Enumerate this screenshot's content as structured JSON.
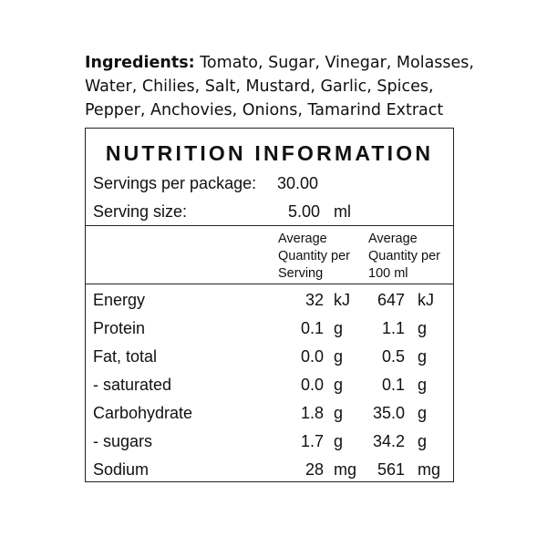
{
  "ingredients": {
    "label": "Ingredients:",
    "text": "Tomato, Sugar, Vinegar, Molasses, Water, Chilies, Salt, Mustard, Garlic, Spices, Pepper, Anchovies, Onions, Tamarind Extract"
  },
  "panel": {
    "title": "NUTRITION INFORMATION",
    "servings_label": "Servings per package:",
    "servings_value": "30.00",
    "serving_size_label": "Serving size:",
    "serving_size_value": "5.00",
    "serving_size_unit": "ml",
    "col_per_serving": "Average Quantity per Serving",
    "col_per_100": "Average Quantity per 100 ml",
    "rows": [
      {
        "name": "Energy",
        "ps": "32",
        "ps_unit": "kJ",
        "p100": "647",
        "p100_unit": "kJ"
      },
      {
        "name": "Protein",
        "ps": "0.1",
        "ps_unit": "g",
        "p100": "1.1",
        "p100_unit": "g"
      },
      {
        "name": "Fat, total",
        "ps": "0.0",
        "ps_unit": "g",
        "p100": "0.5",
        "p100_unit": "g"
      },
      {
        "name": "- saturated",
        "ps": "0.0",
        "ps_unit": "g",
        "p100": "0.1",
        "p100_unit": "g"
      },
      {
        "name": "Carbohydrate",
        "ps": "1.8",
        "ps_unit": "g",
        "p100": "35.0",
        "p100_unit": "g"
      },
      {
        "name": "- sugars",
        "ps": "1.7",
        "ps_unit": "g",
        "p100": "34.2",
        "p100_unit": "g"
      },
      {
        "name": "Sodium",
        "ps": "28",
        "ps_unit": "mg",
        "p100": "561",
        "p100_unit": "mg"
      }
    ]
  }
}
